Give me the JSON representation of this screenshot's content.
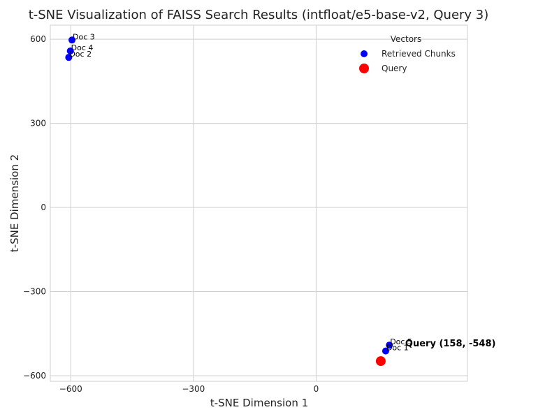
{
  "chart_data": {
    "type": "scatter",
    "title": "t-SNE Visualization of FAISS Search Results (intfloat/e5-base-v2, Query 3)",
    "xlabel": "t-SNE Dimension 1",
    "ylabel": "t-SNE Dimension 2",
    "xlim": [
      -650,
      370
    ],
    "ylim": [
      -620,
      650
    ],
    "xticks": [
      -600,
      -300,
      0
    ],
    "xtick_labels": [
      "−600",
      "−300",
      "0"
    ],
    "yticks": [
      600,
      300,
      0,
      -300,
      -600
    ],
    "ytick_labels": [
      "600",
      "300",
      "0",
      "−300",
      "−600"
    ],
    "grid": true,
    "legend": {
      "title": "Vectors",
      "position": "top-right",
      "entries": [
        "Retrieved Chunks",
        "Query"
      ]
    },
    "series": [
      {
        "name": "Retrieved Chunks",
        "color": "#0000ff",
        "points": [
          {
            "label": "Doc 1",
            "x": 170,
            "y": -512
          },
          {
            "label": "Doc 2",
            "x": -605,
            "y": 535
          },
          {
            "label": "Doc 3",
            "x": -597,
            "y": 597
          },
          {
            "label": "Doc 4",
            "x": -601,
            "y": 558
          },
          {
            "label": "Doc 5",
            "x": 179,
            "y": -491
          }
        ]
      },
      {
        "name": "Query",
        "color": "#ff0000",
        "points": [
          {
            "label": "Query (158, -548)",
            "x": 158,
            "y": -548
          }
        ]
      }
    ]
  }
}
